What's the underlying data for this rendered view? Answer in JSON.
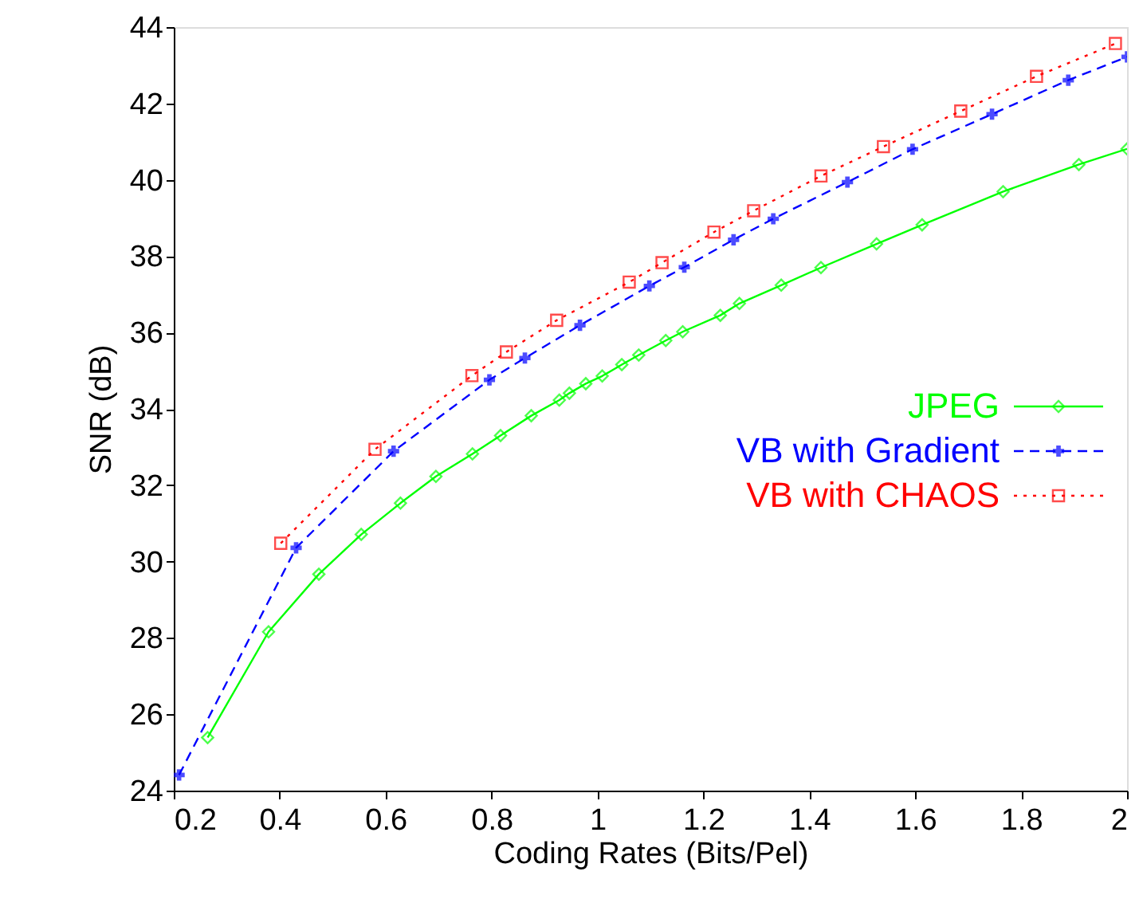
{
  "chart_data": {
    "type": "line",
    "xlabel": "Coding Rates (Bits/Pel)",
    "ylabel": "SNR (dB)",
    "xlim": [
      0.2,
      2
    ],
    "ylim": [
      24,
      44
    ],
    "xticks": [
      0.2,
      0.4,
      0.6,
      0.8,
      1,
      1.2,
      1.4,
      1.6,
      1.8,
      2
    ],
    "yticks": [
      24,
      26,
      28,
      30,
      32,
      34,
      36,
      38,
      40,
      42,
      44
    ],
    "grid": false,
    "legend": "right",
    "series": [
      {
        "name": "JPEG",
        "color": "#00ff00",
        "marker": "diamond",
        "line_style": "solid",
        "x": [
          0.264,
          0.379,
          0.474,
          0.554,
          0.628,
          0.695,
          0.764,
          0.817,
          0.875,
          0.928,
          0.947,
          0.978,
          1.009,
          1.046,
          1.078,
          1.129,
          1.161,
          1.232,
          1.268,
          1.347,
          1.422,
          1.527,
          1.613,
          1.766,
          1.909,
          2.0
        ],
        "values": [
          25.39,
          28.16,
          29.67,
          30.71,
          31.53,
          32.23,
          32.82,
          33.3,
          33.82,
          34.23,
          34.41,
          34.66,
          34.86,
          35.16,
          35.41,
          35.79,
          36.02,
          36.45,
          36.76,
          37.24,
          37.7,
          38.32,
          38.82,
          39.69,
          40.4,
          40.81
        ]
      },
      {
        "name": "VB with Gradient",
        "color": "#0000ff",
        "marker": "cross",
        "line_style": "dashed",
        "x": [
          0.21,
          0.431,
          0.615,
          0.796,
          0.863,
          0.967,
          1.098,
          1.164,
          1.257,
          1.332,
          1.472,
          1.595,
          1.745,
          1.889,
          2.0
        ],
        "values": [
          24.41,
          30.36,
          32.89,
          34.76,
          35.33,
          36.19,
          37.22,
          37.71,
          38.43,
          38.98,
          39.94,
          40.8,
          41.72,
          42.61,
          43.22
        ]
      },
      {
        "name": "VB with CHAOS",
        "color": "#ff0000",
        "marker": "square",
        "line_style": "dotted",
        "x": [
          0.402,
          0.58,
          0.763,
          0.828,
          0.923,
          1.06,
          1.122,
          1.22,
          1.295,
          1.422,
          1.54,
          1.686,
          1.829,
          1.978
        ],
        "values": [
          30.48,
          32.94,
          34.87,
          35.49,
          36.32,
          37.32,
          37.83,
          38.63,
          39.19,
          40.1,
          40.87,
          41.8,
          42.71,
          43.57
        ]
      }
    ]
  }
}
